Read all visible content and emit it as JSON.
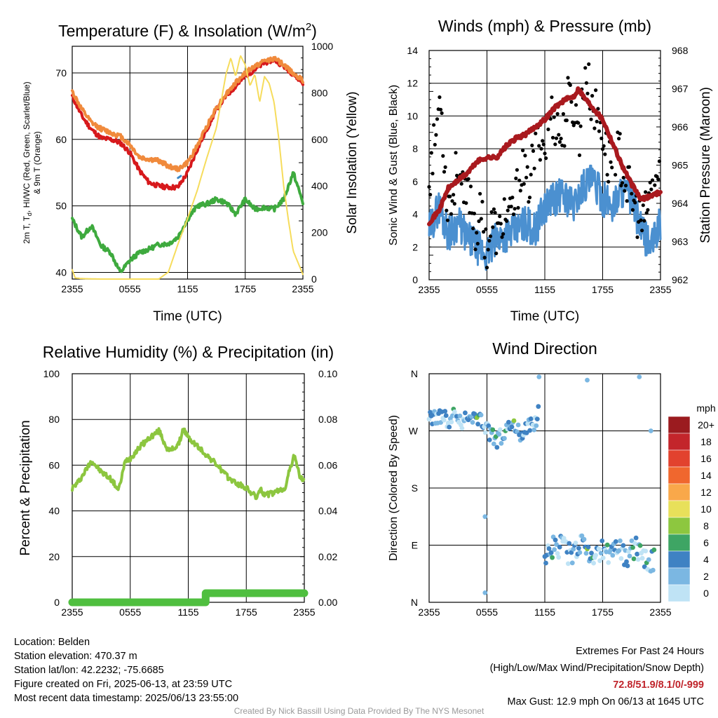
{
  "chart_data": [
    {
      "type": "line",
      "title": "Temperature (F) & Insolation (W/m²)",
      "title_main": "Temperature (F) & Insolation (W/m",
      "title_sup": "2",
      "title_end": ")",
      "xlabel": "Time (UTC)",
      "ylabel_lines": [
        "2m T, T",
        "d",
        ", HI/WC (Red, Green, Scarlet/Blue)",
        "& 9m T (Orange)"
      ],
      "y2label": "Solar Insolation (Yellow)",
      "x_ticks": [
        "2355",
        "0555",
        "1155",
        "1755",
        "2355"
      ],
      "y_ticks": [
        40,
        50,
        60,
        70
      ],
      "y2_ticks": [
        0,
        200,
        400,
        600,
        800,
        1000
      ],
      "ylim": [
        39,
        74
      ],
      "y2lim": [
        0,
        1000
      ],
      "series": [
        {
          "axis": "y",
          "color": "#d7191c",
          "width": 4,
          "hours": [
            0,
            1,
            2,
            3,
            4,
            5,
            6,
            7,
            8,
            9,
            10,
            11,
            12,
            13,
            14,
            15,
            16,
            17,
            18,
            19,
            20,
            21,
            22,
            23,
            24
          ],
          "values": [
            66.5,
            63.5,
            61.5,
            60.2,
            60.0,
            59.5,
            58.0,
            55.3,
            53.5,
            53.0,
            52.8,
            52.8,
            55.0,
            58.5,
            61.5,
            64.5,
            66.5,
            68.0,
            69.5,
            70.5,
            71.5,
            72.0,
            71.0,
            69.8,
            68.5
          ]
        },
        {
          "axis": "y",
          "color": "#f08a3c",
          "width": 4,
          "hours": [
            0,
            1,
            2,
            3,
            4,
            5,
            6,
            7,
            8,
            9,
            10,
            11,
            12,
            13,
            14,
            15,
            16,
            17,
            18,
            19,
            20,
            21,
            22,
            23,
            24
          ],
          "values": [
            67.2,
            64.5,
            62.5,
            61.6,
            61.0,
            60.5,
            59.2,
            57.3,
            57.0,
            56.8,
            56.0,
            55.5,
            56.5,
            59.0,
            62.0,
            64.8,
            66.8,
            68.5,
            70.0,
            71.0,
            71.8,
            72.2,
            71.2,
            70.0,
            68.8
          ]
        },
        {
          "axis": "y",
          "color": "#3eaa3e",
          "width": 4,
          "hours": [
            0,
            1,
            2,
            3,
            4,
            5,
            6,
            7,
            8,
            9,
            10,
            11,
            12,
            13,
            14,
            15,
            16,
            17,
            18,
            19,
            20,
            21,
            22,
            23,
            24
          ],
          "values": [
            48.0,
            45.3,
            47.0,
            44.0,
            43.0,
            40.0,
            41.8,
            43.0,
            43.5,
            44.2,
            44.3,
            45.3,
            48.0,
            50.0,
            50.3,
            51.0,
            50.5,
            48.8,
            51.0,
            49.5,
            49.8,
            49.5,
            51.0,
            55.0,
            50.5
          ]
        },
        {
          "axis": "y",
          "color": "#3b87c6",
          "width": 3,
          "hours": [
            11.0,
            11.3
          ],
          "values": [
            54.2,
            54.5
          ]
        },
        {
          "axis": "y2",
          "color": "#f6dc5c",
          "width": 2,
          "hours": [
            0,
            0.3,
            1,
            3,
            5,
            7,
            8,
            9,
            10,
            11,
            12,
            13,
            14,
            15,
            16,
            16.5,
            17,
            17.5,
            18,
            18.5,
            19,
            19.5,
            20,
            20.5,
            21,
            21.5,
            22,
            22.5,
            23,
            24
          ],
          "values": [
            40,
            5,
            2,
            0,
            0,
            0,
            0,
            0,
            30,
            150,
            260,
            380,
            520,
            650,
            880,
            950,
            870,
            960,
            920,
            830,
            880,
            760,
            870,
            840,
            760,
            600,
            400,
            250,
            120,
            20
          ]
        }
      ]
    },
    {
      "type": "scatter",
      "title": "Winds (mph) & Pressure (mb)",
      "xlabel": "Time (UTC)",
      "ylabel": "Sonic Wind & Gust (Blue, Black)",
      "y2label": "Station Pressure (Maroon)",
      "x_ticks": [
        "2355",
        "0555",
        "1155",
        "1755",
        "2355"
      ],
      "y_ticks": [
        0,
        2,
        4,
        6,
        8,
        10,
        12,
        14
      ],
      "y2_ticks": [
        962,
        963,
        964,
        965,
        966,
        967,
        968
      ],
      "ylim": [
        0,
        14
      ],
      "y2lim": [
        962,
        968
      ],
      "wind": {
        "color": "#4b90d0",
        "hours": [
          0,
          1,
          2,
          3,
          4,
          5,
          6,
          7,
          8,
          9,
          10,
          11,
          12,
          13,
          14,
          15,
          16,
          17,
          18,
          19,
          20,
          21,
          22,
          23,
          24
        ],
        "values": [
          3.0,
          4.5,
          2.8,
          3.5,
          2.5,
          2.0,
          1.5,
          2.5,
          2.8,
          3.0,
          3.5,
          3.0,
          4.5,
          5.0,
          5.2,
          4.5,
          5.8,
          6.0,
          5.0,
          4.5,
          5.5,
          5.0,
          3.0,
          2.0,
          3.5
        ]
      },
      "gust": {
        "color": "#000000",
        "hours": [
          0,
          0.6,
          1.2,
          1.8,
          2.4,
          3,
          3.6,
          4.2,
          4.8,
          5.4,
          6,
          6.6,
          7.2,
          7.8,
          8.4,
          9,
          9.6,
          10.2,
          10.8,
          11.4,
          12,
          12.6,
          13.2,
          13.8,
          14.4,
          15,
          15.6,
          16.2,
          16.8,
          17.4,
          18,
          18.6,
          19.2,
          19.8,
          20.4,
          21,
          21.6,
          22.2,
          22.8,
          23.4,
          24
        ],
        "values": [
          6.2,
          8.5,
          11.5,
          5.0,
          4.8,
          7.5,
          4.5,
          5.5,
          3.0,
          4.0,
          2.0,
          3.5,
          2.5,
          4.2,
          3.5,
          5.0,
          7.0,
          5.5,
          7.2,
          9.0,
          8.0,
          10.2,
          9.5,
          8.5,
          11.0,
          10.5,
          9.0,
          12.9,
          11.0,
          10.0,
          9.0,
          7.0,
          8.0,
          7.5,
          6.0,
          5.0,
          4.0,
          3.2,
          5.0,
          6.0,
          6.5
        ]
      },
      "pressure": {
        "color": "#a9191e",
        "hours": [
          0,
          1,
          2,
          3,
          4,
          5,
          6,
          7,
          8,
          9,
          10,
          11,
          12,
          13,
          14,
          15,
          15.5,
          16,
          17,
          18,
          19,
          20,
          21,
          22,
          23,
          24
        ],
        "values": [
          963.5,
          963.8,
          964.4,
          964.6,
          964.8,
          965.1,
          965.2,
          965.2,
          965.5,
          965.7,
          965.8,
          966.0,
          966.2,
          966.5,
          966.7,
          966.8,
          967.0,
          966.8,
          966.5,
          966.2,
          965.6,
          965.0,
          964.5,
          964.1,
          964.2,
          964.3
        ]
      }
    },
    {
      "type": "line",
      "title": "Relative Humidity (%) & Precipitation (in)",
      "ylabel": "Percent & Precipitation",
      "x_ticks": [
        "2355",
        "0555",
        "1155",
        "1755",
        "2355"
      ],
      "y_ticks": [
        0,
        20,
        40,
        60,
        80,
        100
      ],
      "y2_ticks": [
        "0.00",
        "0.02",
        "0.04",
        "0.06",
        "0.08",
        "0.10"
      ],
      "ylim": [
        0,
        100
      ],
      "y2lim": [
        0,
        0.1
      ],
      "humidity": {
        "color": "#8cc63f",
        "hours": [
          0,
          0.5,
          1,
          2,
          3,
          4,
          4.8,
          5.5,
          6,
          7,
          8,
          9,
          9.5,
          10,
          11,
          11.5,
          12,
          13,
          14,
          15,
          16,
          17,
          18,
          19,
          19.5,
          20,
          21,
          22,
          22.5,
          23,
          23.5,
          24
        ],
        "values": [
          50,
          52,
          55,
          62,
          57,
          54,
          49,
          62,
          63,
          68,
          72,
          75,
          70,
          66,
          69,
          76,
          72,
          68,
          64,
          60,
          55,
          52,
          50,
          46,
          49,
          47,
          48,
          50,
          58,
          65,
          55,
          53
        ]
      },
      "precip": {
        "color": "#4fbf3f",
        "hours": [
          0,
          13.8,
          13.8,
          24
        ],
        "values": [
          0,
          0,
          0.004,
          0.004
        ]
      }
    },
    {
      "type": "scatter",
      "title": "Wind Direction",
      "ylabel": "Direction (Colored By Speed)",
      "x_ticks": [
        "2355",
        "0555",
        "1155",
        "1755",
        "2355"
      ],
      "y_ticks": [
        "N",
        "E",
        "S",
        "W",
        "N"
      ],
      "ylim": [
        0,
        360
      ],
      "legend_title": "mph",
      "legend_labels": [
        "20+",
        "18",
        "16",
        "14",
        "12",
        "10",
        "8",
        "6",
        "4",
        "2",
        "0"
      ],
      "legend_colors": [
        "#9b1b1f",
        "#c3252b",
        "#e2422e",
        "#f0672e",
        "#f9a84a",
        "#e8e05a",
        "#8dc73f",
        "#3ea564",
        "#3f82c3",
        "#7bb7e2",
        "#bfe3f5"
      ],
      "point_groups": [
        {
          "hours": [
            0,
            0.5,
            1,
            1.5,
            2,
            2.5,
            3,
            3.5,
            4,
            4.5,
            5,
            5.5,
            6,
            6.5,
            7,
            7.5,
            8,
            8.5,
            9,
            9.5,
            10,
            10.5,
            11,
            11.4
          ],
          "values": [
            290,
            288,
            295,
            292,
            286,
            294,
            289,
            285,
            290,
            292,
            293,
            284,
            270,
            265,
            255,
            262,
            270,
            283,
            275,
            264,
            270,
            278,
            285,
            300
          ],
          "spread": 12
        },
        {
          "hours": [
            12,
            12.8,
            13.5,
            14.3,
            15,
            15.7,
            16.4,
            17.1,
            17.8,
            18.5,
            19.2,
            19.9,
            20.6,
            21.3,
            22,
            22.7,
            23.4
          ],
          "values": [
            75,
            85,
            88,
            80,
            70,
            92,
            78,
            65,
            85,
            75,
            95,
            80,
            70,
            88,
            78,
            60,
            68
          ],
          "spread": 18
        }
      ],
      "outliers": [
        {
          "h": 11.4,
          "v": 355
        },
        {
          "h": 5.8,
          "v": 135
        },
        {
          "h": 5.8,
          "v": 15
        },
        {
          "h": 16.4,
          "v": 350
        },
        {
          "h": 21.8,
          "v": 355
        },
        {
          "h": 23,
          "v": 270
        }
      ]
    }
  ],
  "footer": {
    "location": "Location: Belden",
    "elevation": "Station elevation: 470.37 m",
    "latlon": "Station lat/lon: 42.2232; -75.6685",
    "created": "Figure created on Fri, 2025-06-13, at 23:59 UTC",
    "recent": "Most recent data timestamp: 2025/06/13 23:55:00",
    "extremes_title": "Extremes For Past 24 Hours",
    "extremes_sub": "(High/Low/Max Wind/Precipitation/Snow Depth)",
    "extremes_values": "72.8/51.9/8.1/0/-999",
    "max_gust": "Max Gust: 12.9 mph On 06/13 at 1645 UTC",
    "credit": "Created By Nick Bassill Using Data Provided By The NYS Mesonet"
  }
}
